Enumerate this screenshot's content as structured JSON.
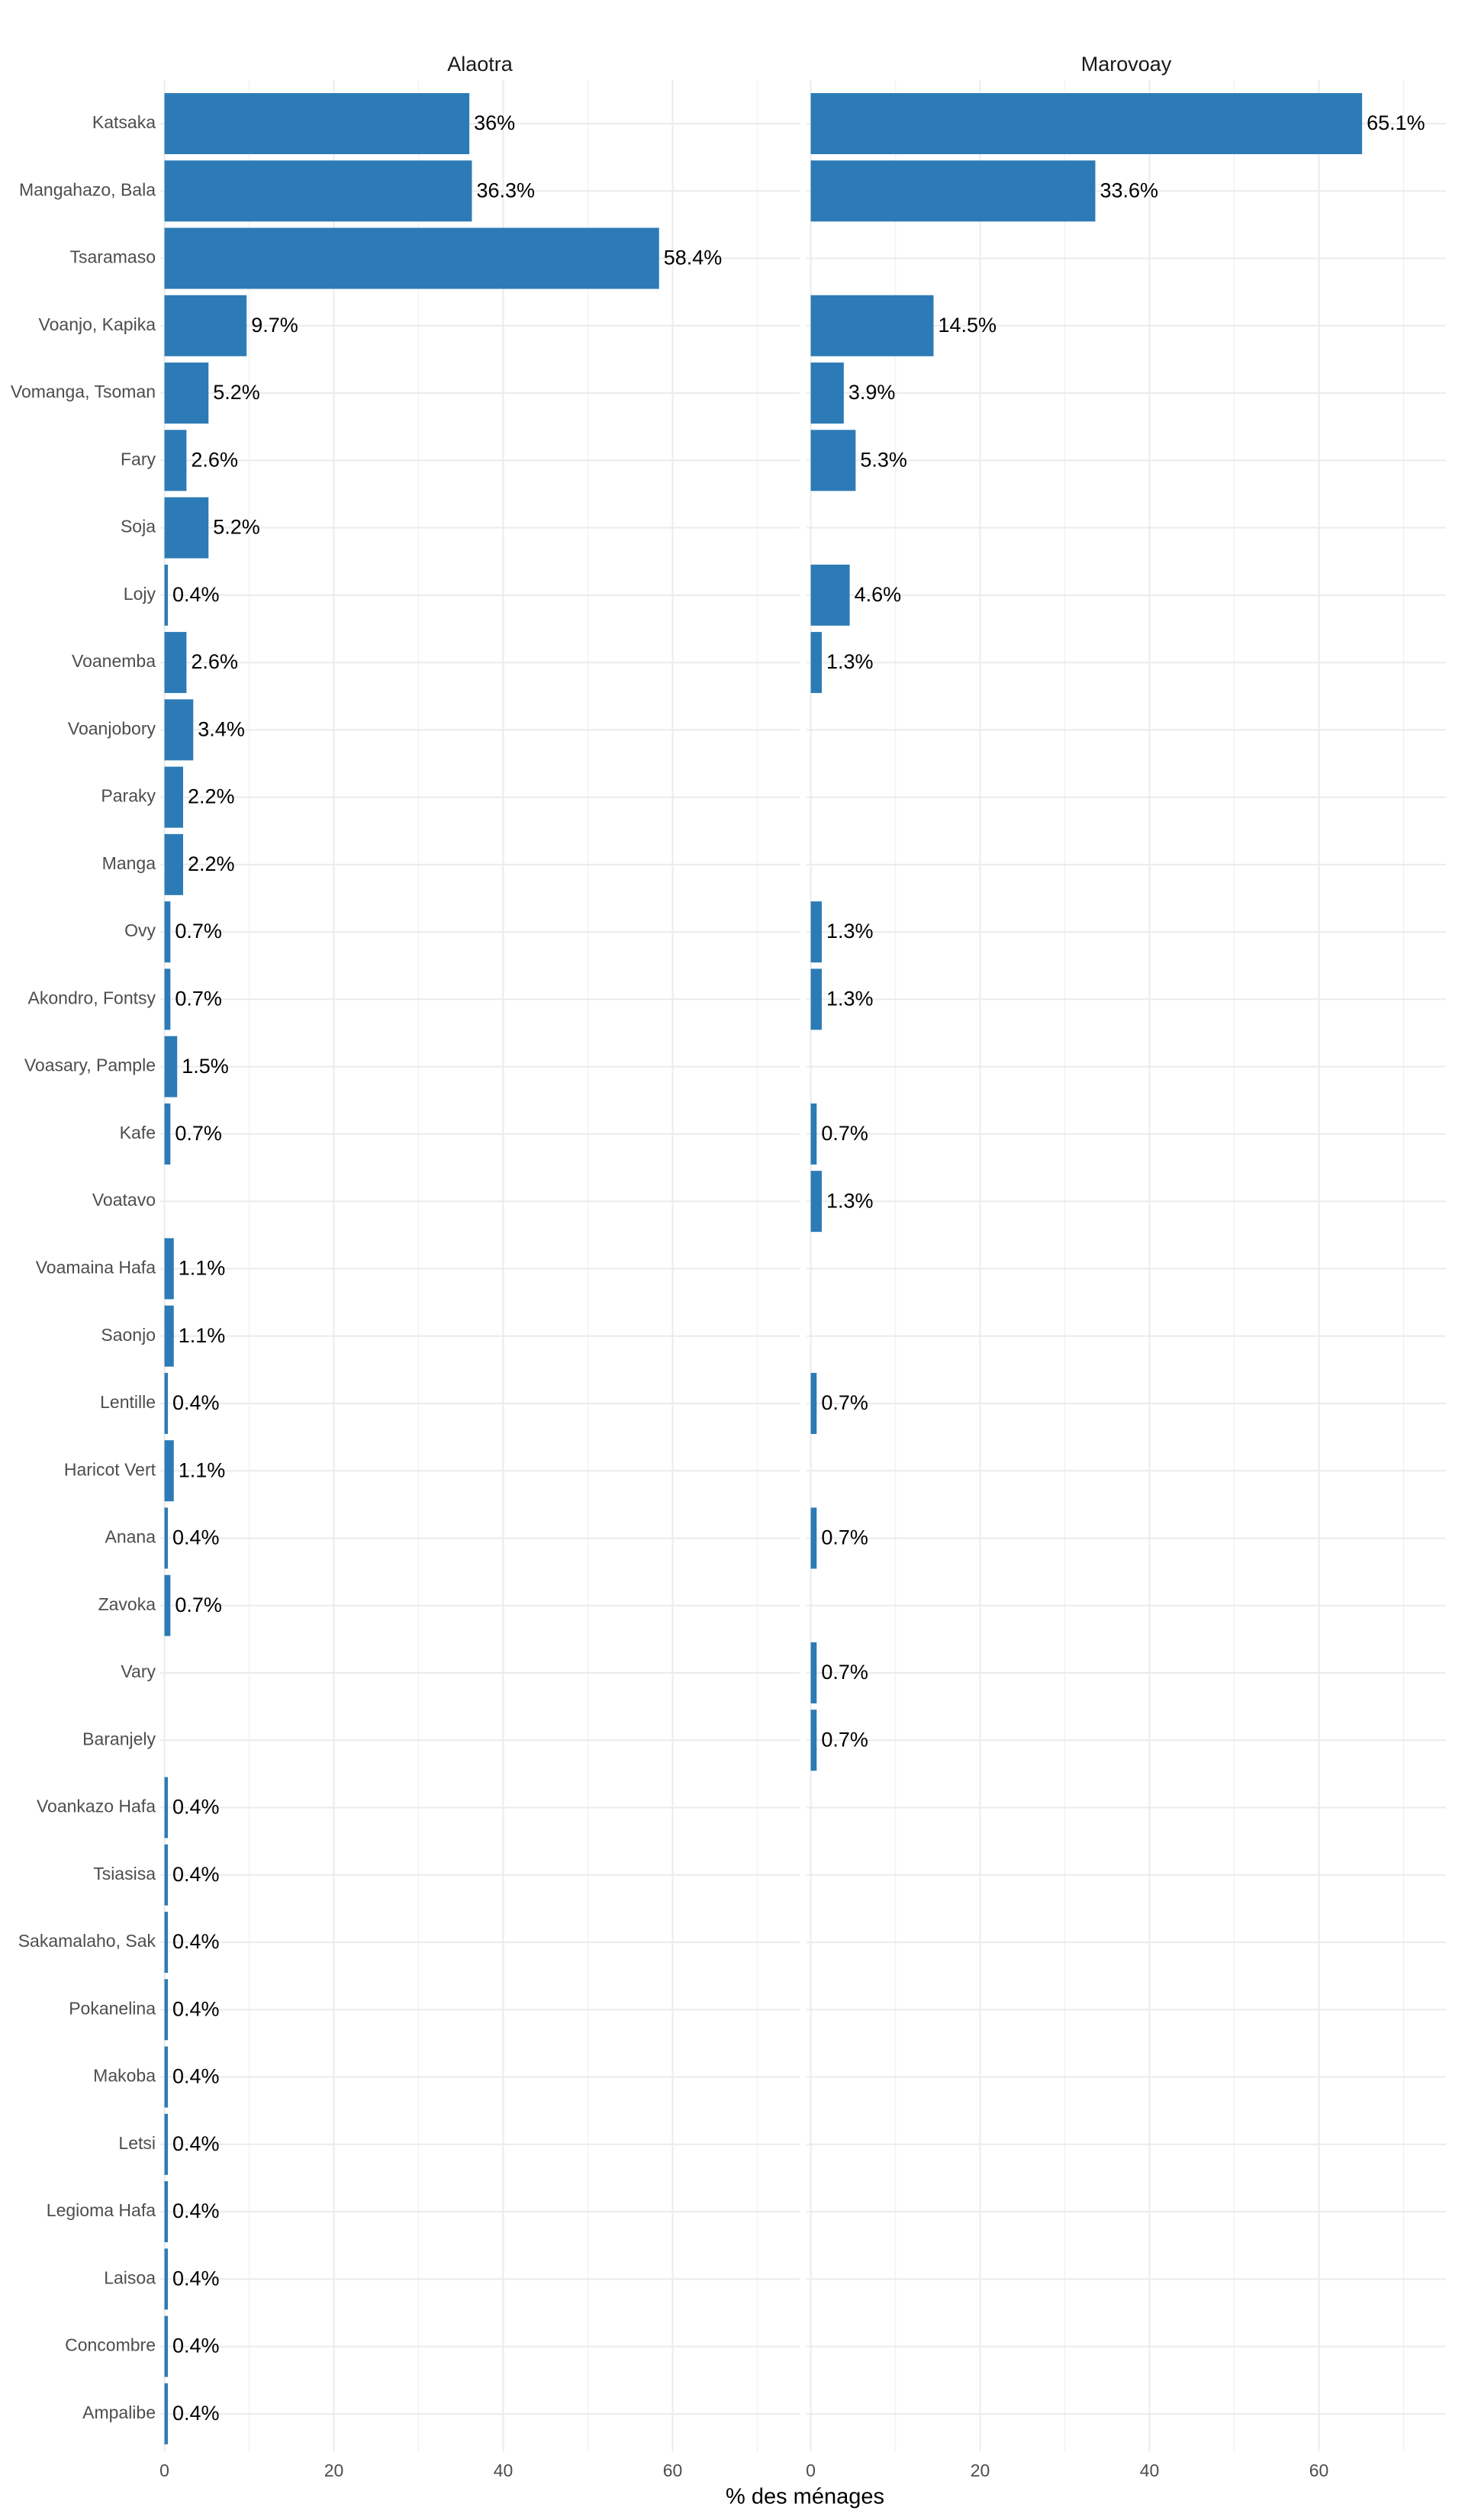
{
  "chart_data": {
    "type": "bar",
    "orientation": "horizontal",
    "x_label": "% des ménages",
    "categories": [
      "Katsaka",
      "Mangahazo, Bala",
      "Tsaramaso",
      "Voanjo, Kapika",
      "Vomanga, Tsoman",
      "Fary",
      "Soja",
      "Lojy",
      "Voanemba",
      "Voanjobory",
      "Paraky",
      "Manga",
      "Ovy",
      "Akondro, Fontsy",
      "Voasary, Pample",
      "Kafe",
      "Voatavo",
      "Voamaina Hafa",
      "Saonjo",
      "Lentille",
      "Haricot Vert",
      "Anana",
      "Zavoka",
      "Vary",
      "Baranjely",
      "Voankazo Hafa",
      "Tsiasisa",
      "Sakamalaho, Sak",
      "Pokanelina",
      "Makoba",
      "Letsi",
      "Legioma Hafa",
      "Laisoa",
      "Concombre",
      "Ampalibe"
    ],
    "series": [
      {
        "name": "Alaotra",
        "color": "#2c7bb6",
        "values": [
          36,
          36.3,
          58.4,
          9.7,
          5.2,
          2.6,
          5.2,
          0.4,
          2.6,
          3.4,
          2.2,
          2.2,
          0.7,
          0.7,
          1.5,
          0.7,
          null,
          1.1,
          1.1,
          0.4,
          1.1,
          0.4,
          0.7,
          null,
          null,
          0.4,
          0.4,
          0.4,
          0.4,
          0.4,
          0.4,
          0.4,
          0.4,
          0.4,
          0.4
        ],
        "value_labels": [
          "36%",
          "36.3%",
          "58.4%",
          "9.7%",
          "5.2%",
          "2.6%",
          "5.2%",
          "0.4%",
          "2.6%",
          "3.4%",
          "2.2%",
          "2.2%",
          "0.7%",
          "0.7%",
          "1.5%",
          "0.7%",
          null,
          "1.1%",
          "1.1%",
          "0.4%",
          "1.1%",
          "0.4%",
          "0.7%",
          null,
          null,
          "0.4%",
          "0.4%",
          "0.4%",
          "0.4%",
          "0.4%",
          "0.4%",
          "0.4%",
          "0.4%",
          "0.4%",
          "0.4%"
        ]
      },
      {
        "name": "Marovoay",
        "color": "#2c7bb6",
        "values": [
          65.1,
          33.6,
          null,
          14.5,
          3.9,
          5.3,
          null,
          4.6,
          1.3,
          null,
          null,
          null,
          1.3,
          1.3,
          null,
          0.7,
          1.3,
          null,
          null,
          0.7,
          null,
          0.7,
          null,
          0.7,
          0.7,
          null,
          null,
          null,
          null,
          null,
          null,
          null,
          null,
          null,
          null
        ],
        "value_labels": [
          "65.1%",
          "33.6%",
          null,
          "14.5%",
          "3.9%",
          "5.3%",
          null,
          "4.6%",
          "1.3%",
          null,
          null,
          null,
          "1.3%",
          "1.3%",
          null,
          "0.7%",
          "1.3%",
          null,
          null,
          "0.7%",
          null,
          "0.7%",
          null,
          "0.7%",
          "0.7%",
          null,
          null,
          null,
          null,
          null,
          null,
          null,
          null,
          null,
          null
        ]
      }
    ],
    "xlim": [
      -0.5,
      75
    ],
    "xticks": [
      0,
      20,
      40,
      60
    ],
    "x_minor_ticks": [
      10,
      30,
      50,
      70
    ],
    "grid": true
  }
}
